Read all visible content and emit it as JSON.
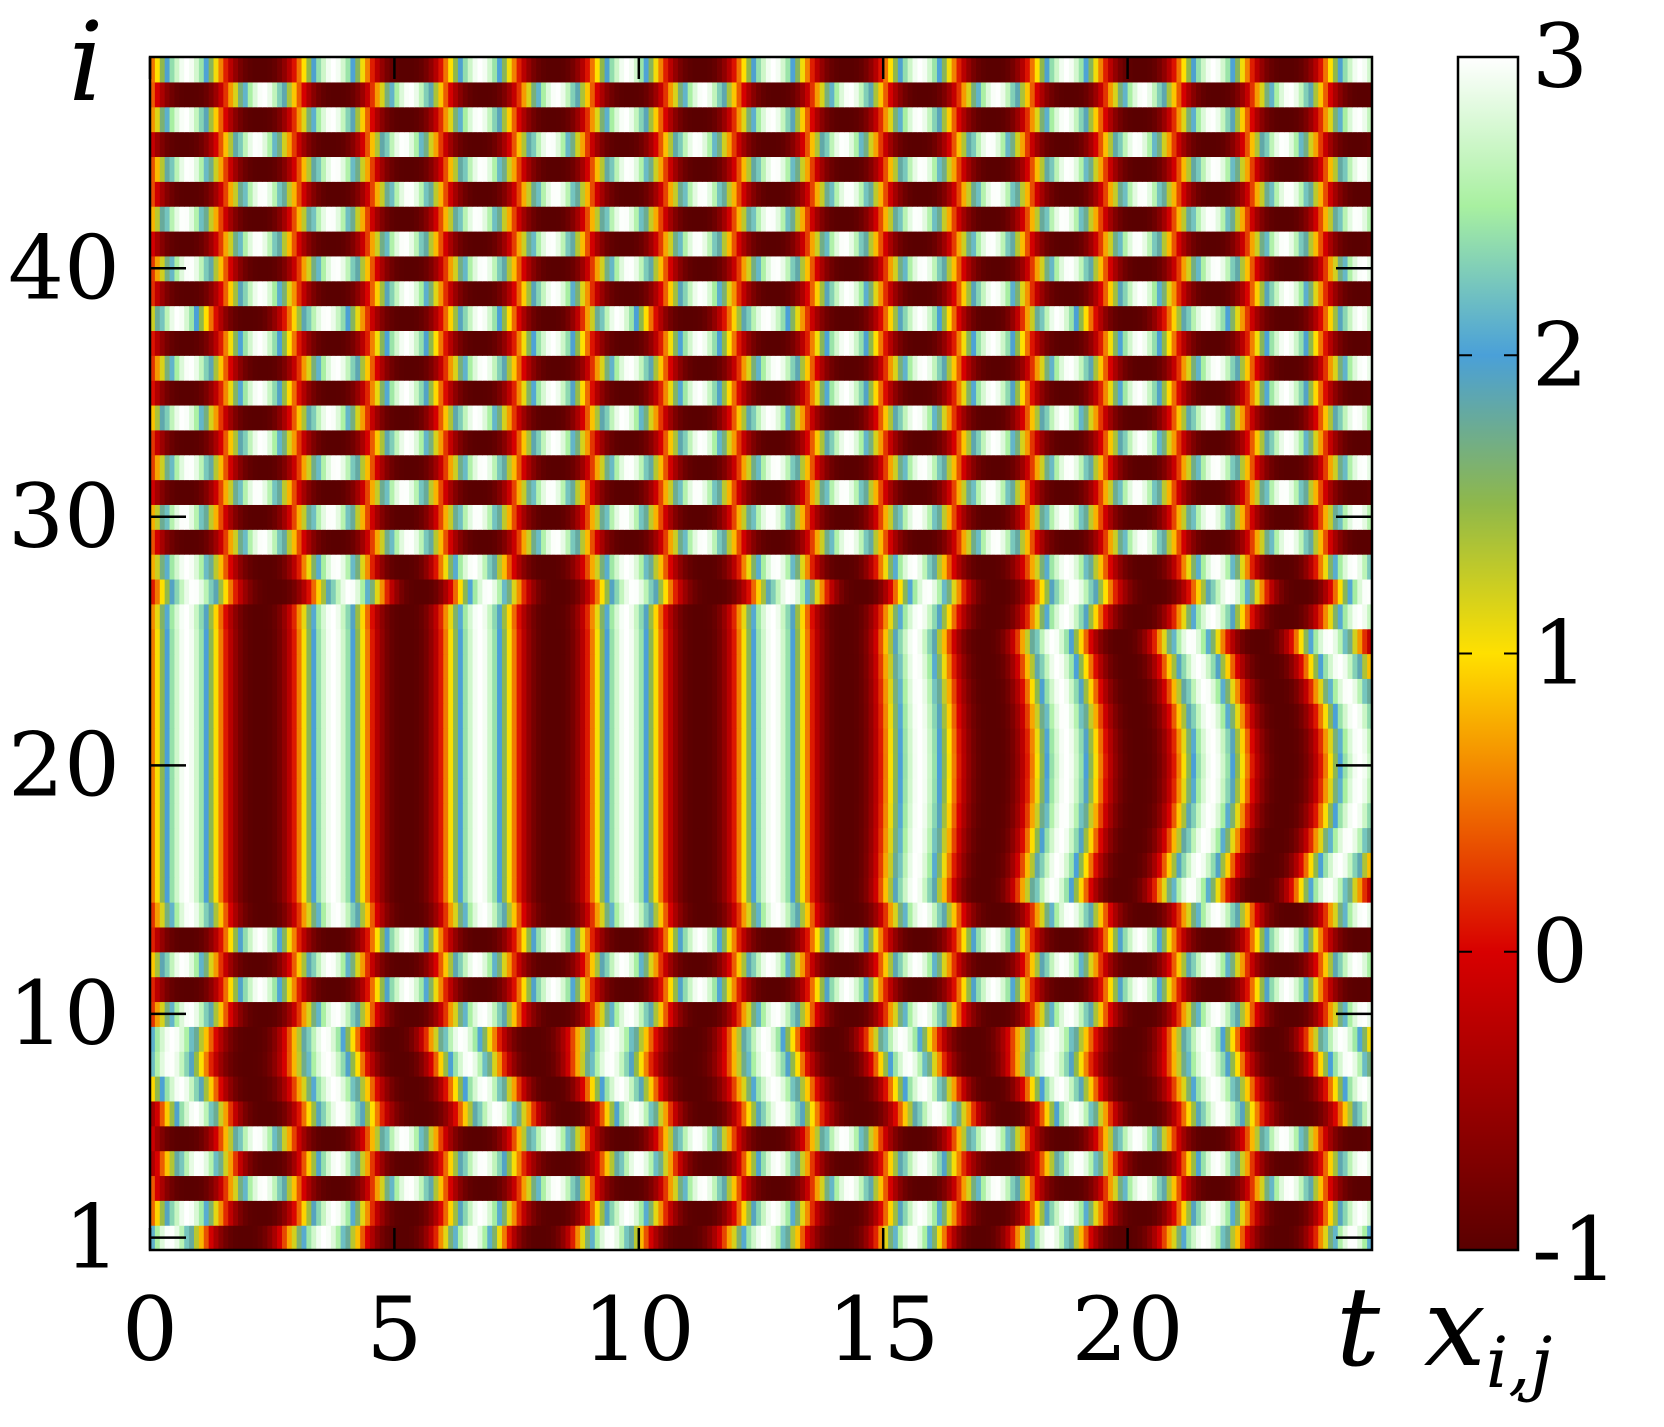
{
  "chart_data": {
    "type": "heatmap",
    "title": "",
    "xlabel": "t",
    "ylabel": "i",
    "colorbar_label": "x_{i,j}",
    "xlim": [
      0,
      25
    ],
    "ylim": [
      1,
      48
    ],
    "x_ticks": [
      0,
      5,
      10,
      15,
      20
    ],
    "y_ticks": [
      1,
      10,
      20,
      30,
      40
    ],
    "colorbar_ticks": [
      -1,
      0,
      1,
      2,
      3
    ],
    "color_range": [
      -1,
      3
    ],
    "colormap": [
      {
        "value": -1.0,
        "color": "#5a0000"
      },
      {
        "value": -0.5,
        "color": "#9a0000"
      },
      {
        "value": 0.0,
        "color": "#d80000"
      },
      {
        "value": 0.5,
        "color": "#f07000"
      },
      {
        "value": 1.0,
        "color": "#ffe000"
      },
      {
        "value": 1.5,
        "color": "#8fb84a"
      },
      {
        "value": 2.0,
        "color": "#4aa0d8"
      },
      {
        "value": 2.5,
        "color": "#a8f0a0"
      },
      {
        "value": 3.0,
        "color": "#ffffff"
      }
    ],
    "bands": {
      "synchronized": [
        [
          15,
          25
        ]
      ],
      "pairwise_alternating": [
        [
          2,
          3
        ],
        [
          5,
          5
        ],
        [
          10,
          14
        ],
        [
          26,
          26
        ],
        [
          29,
          37
        ],
        [
          39,
          48
        ]
      ]
    },
    "oscillation_period": 3.0,
    "grid": false
  }
}
